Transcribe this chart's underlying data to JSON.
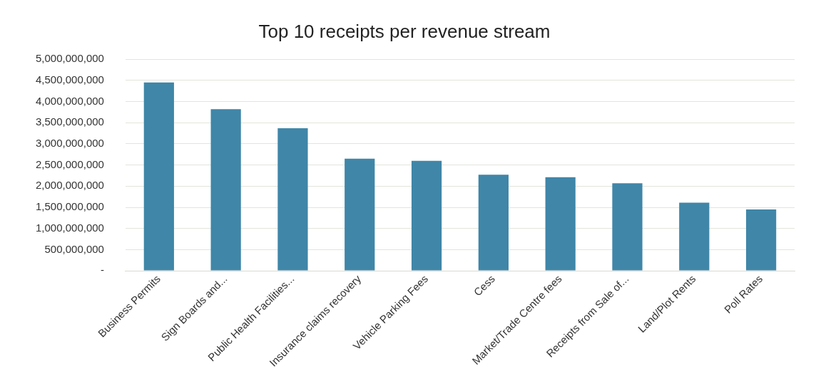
{
  "chart_data": {
    "type": "bar",
    "title": "Top 10 receipts per revenue stream",
    "categories": [
      "Business Permits",
      "Sign Boards and...",
      "Public Health Facilities...",
      "Insurance claims recovery",
      "Vehicle Parking Fees",
      "Cess",
      "Market/Trade Centre fees",
      "Receipts from Sale of...",
      "Land/Plot Rents",
      "Poll Rates"
    ],
    "values": [
      4450000000,
      3820000000,
      3370000000,
      2650000000,
      2600000000,
      2270000000,
      2210000000,
      2070000000,
      1610000000,
      1450000000
    ],
    "color": "#3f86a8",
    "ylim": [
      0,
      5000000000
    ],
    "yticks": [
      {
        "value": 0,
        "label": "-"
      },
      {
        "value": 500000000,
        "label": "500,000,000"
      },
      {
        "value": 1000000000,
        "label": "1,000,000,000"
      },
      {
        "value": 1500000000,
        "label": "1,500,000,000"
      },
      {
        "value": 2000000000,
        "label": "2,000,000,000"
      },
      {
        "value": 2500000000,
        "label": "2,500,000,000"
      },
      {
        "value": 3000000000,
        "label": "3,000,000,000"
      },
      {
        "value": 3500000000,
        "label": "3,500,000,000"
      },
      {
        "value": 4000000000,
        "label": "4,000,000,000"
      },
      {
        "value": 4500000000,
        "label": "4,500,000,000"
      },
      {
        "value": 5000000000,
        "label": "5,000,000,000"
      }
    ],
    "grid": "y",
    "legend": false
  }
}
